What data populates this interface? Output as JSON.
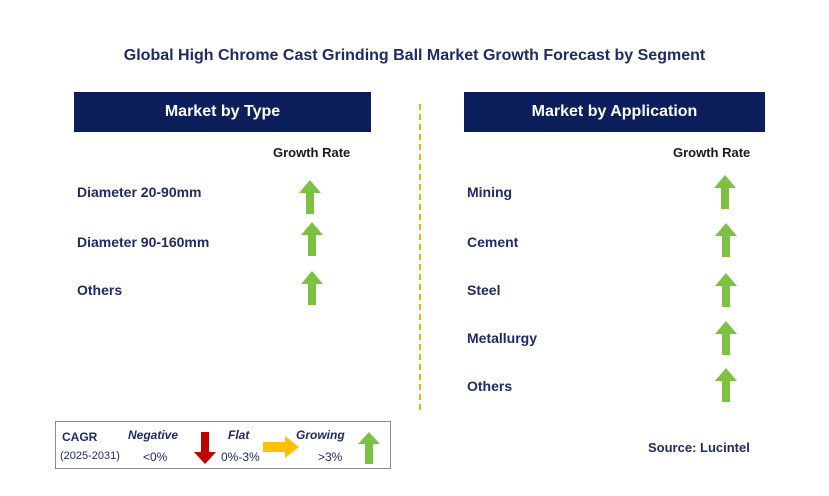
{
  "title": "Global High Chrome Cast Grinding Ball Market Growth Forecast by Segment",
  "left_panel": {
    "header": "Market by Type",
    "growth_label": "Growth Rate",
    "rows": [
      {
        "label": "Diameter 20-90mm",
        "trend": "growing"
      },
      {
        "label": "Diameter 90-160mm",
        "trend": "growing"
      },
      {
        "label": "Others",
        "trend": "growing"
      }
    ]
  },
  "right_panel": {
    "header": "Market by Application",
    "growth_label": "Growth Rate",
    "rows": [
      {
        "label": "Mining",
        "trend": "growing"
      },
      {
        "label": "Cement",
        "trend": "growing"
      },
      {
        "label": "Steel",
        "trend": "growing"
      },
      {
        "label": "Metallurgy",
        "trend": "growing"
      },
      {
        "label": "Others",
        "trend": "growing"
      }
    ]
  },
  "legend": {
    "cagr_label": "CAGR",
    "period": "(2025-2031)",
    "negative_label": "Negative",
    "negative_range": "<0%",
    "flat_label": "Flat",
    "flat_range": "0%-3%",
    "growing_label": "Growing",
    "growing_range": ">3%"
  },
  "source": "Source: Lucintel",
  "colors": {
    "header_bg": "#0c1f5c",
    "growing_arrow": "#7dc142",
    "negative_arrow": "#c00000",
    "flat_arrow": "#ffc000",
    "divider": "#f0b400"
  }
}
